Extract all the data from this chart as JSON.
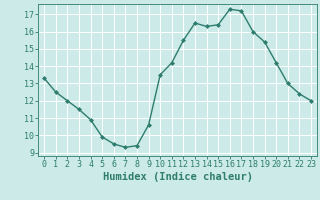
{
  "x": [
    0,
    1,
    2,
    3,
    4,
    5,
    6,
    7,
    8,
    9,
    10,
    11,
    12,
    13,
    14,
    15,
    16,
    17,
    18,
    19,
    20,
    21,
    22,
    23
  ],
  "y": [
    13.3,
    12.5,
    12.0,
    11.5,
    10.9,
    9.9,
    9.5,
    9.3,
    9.4,
    10.6,
    13.5,
    14.2,
    15.5,
    16.5,
    16.3,
    16.4,
    17.3,
    17.2,
    16.0,
    15.4,
    14.2,
    13.0,
    12.4,
    12.0
  ],
  "line_color": "#2e7d6e",
  "marker": "D",
  "marker_size": 2.0,
  "bg_color": "#cceae7",
  "grid_color": "#ffffff",
  "tick_color": "#2e7d6e",
  "xlabel": "Humidex (Indice chaleur)",
  "xlabel_fontsize": 7.5,
  "xlim": [
    -0.5,
    23.5
  ],
  "ylim": [
    8.8,
    17.6
  ],
  "yticks": [
    9,
    10,
    11,
    12,
    13,
    14,
    15,
    16,
    17
  ],
  "xticks": [
    0,
    1,
    2,
    3,
    4,
    5,
    6,
    7,
    8,
    9,
    10,
    11,
    12,
    13,
    14,
    15,
    16,
    17,
    18,
    19,
    20,
    21,
    22,
    23
  ],
  "tick_fontsize": 6.0,
  "linewidth": 1.0
}
